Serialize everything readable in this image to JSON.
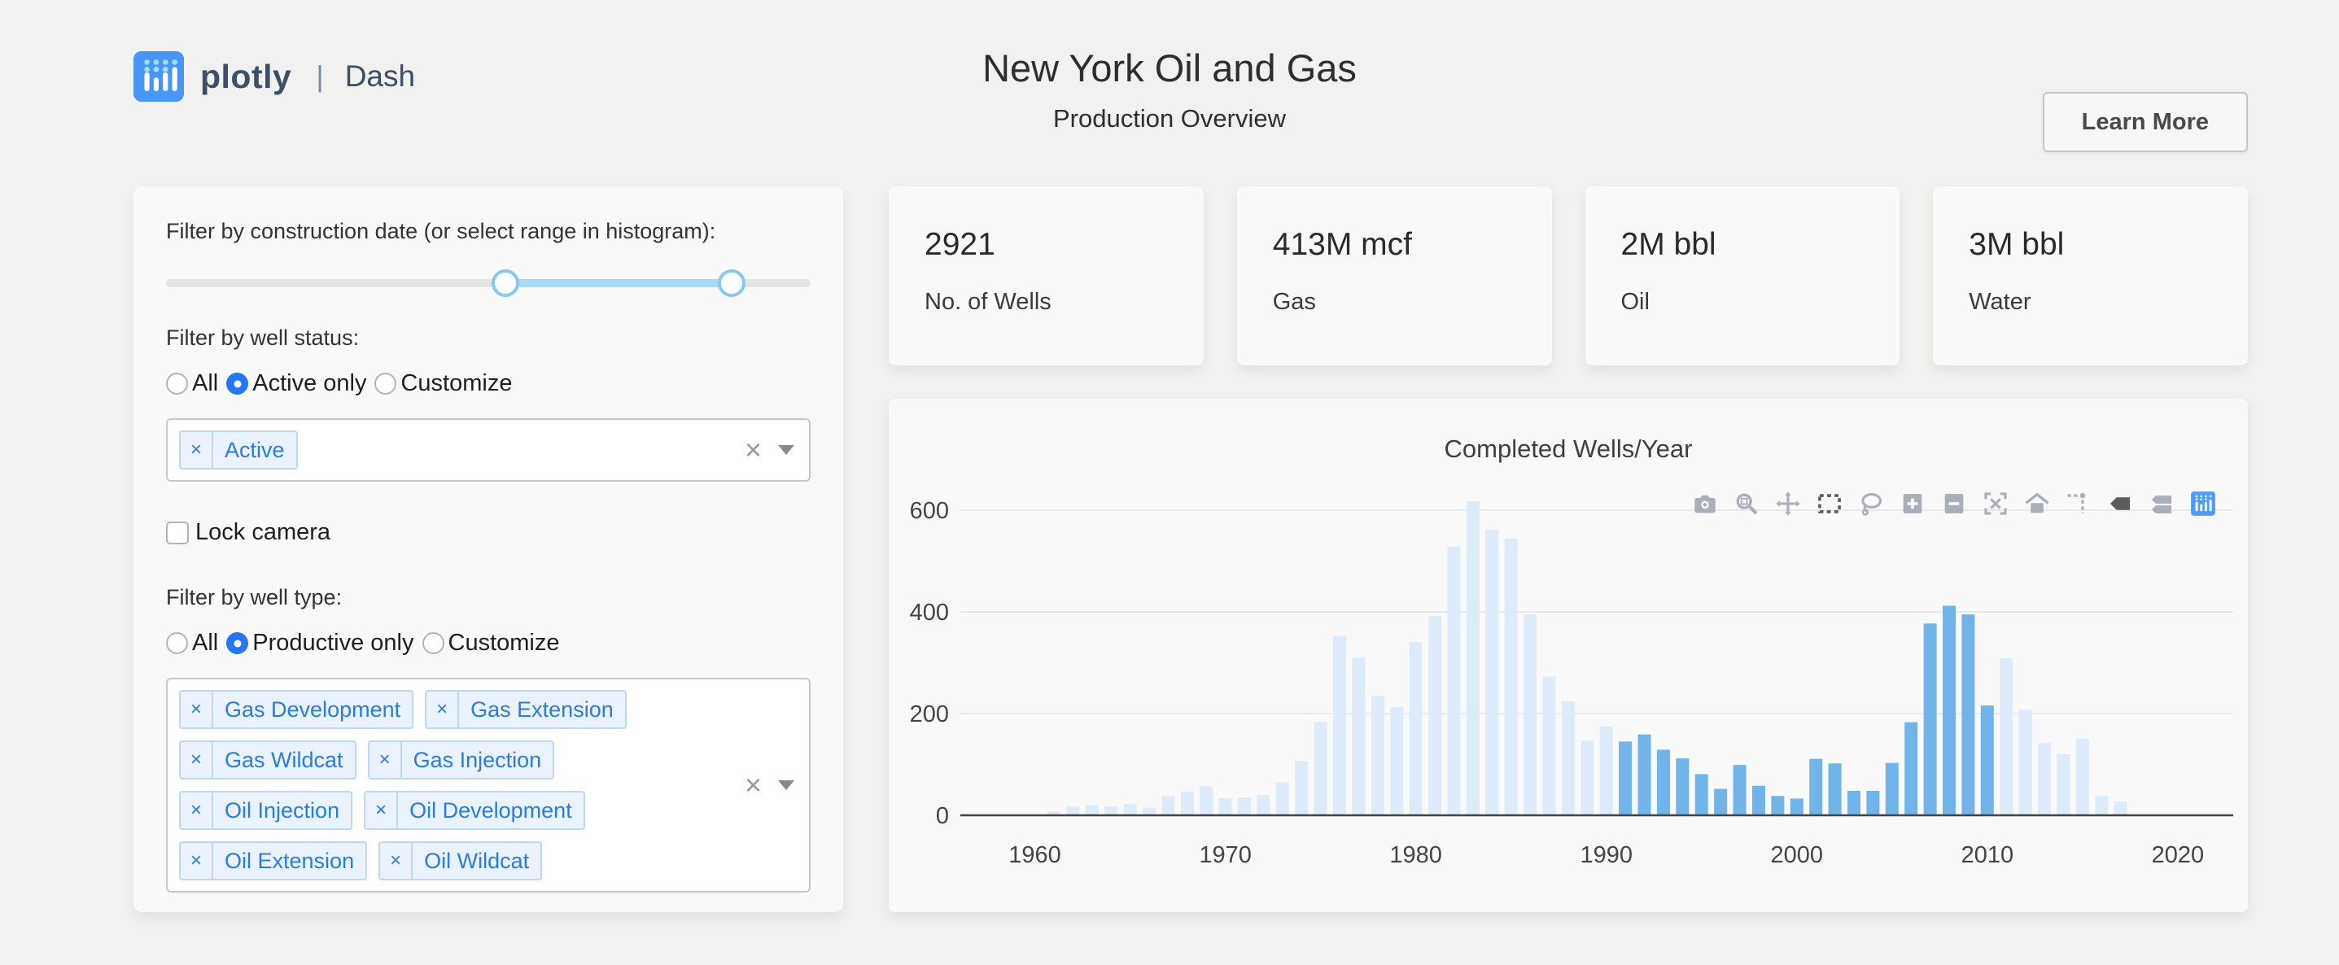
{
  "header": {
    "logo": {
      "brand": "plotly",
      "separator": "|",
      "product": "Dash"
    },
    "title": "New York Oil and Gas",
    "subtitle": "Production Overview",
    "learn_more_label": "Learn More"
  },
  "glyphs": {
    "chip_remove": "×",
    "dropdown_clear": "×",
    "dropdown_caret": "caret-down"
  },
  "filters": {
    "construction_date_label": "Filter by construction date (or select range in histogram):",
    "year_slider": {
      "min": 1960,
      "max": 2017,
      "value": [
        1990,
        2010
      ]
    },
    "well_status_label": "Filter by well status:",
    "well_status_options": [
      {
        "label": "All",
        "selected": false
      },
      {
        "label": "Active only",
        "selected": true
      },
      {
        "label": "Customize",
        "selected": false
      }
    ],
    "well_status_chips": [
      "Active"
    ],
    "lock_camera_label": "Lock camera",
    "lock_camera_checked": false,
    "well_type_label": "Filter by well type:",
    "well_type_options": [
      {
        "label": "All",
        "selected": false
      },
      {
        "label": "Productive only",
        "selected": true
      },
      {
        "label": "Customize",
        "selected": false
      }
    ],
    "well_type_chips": [
      "Gas Development",
      "Gas Extension",
      "Gas Wildcat",
      "Gas Injection",
      "Oil Injection",
      "Oil Development",
      "Oil Extension",
      "Oil Wildcat"
    ]
  },
  "stats": [
    {
      "value": "2921",
      "label": "No. of Wells"
    },
    {
      "value": "413M mcf",
      "label": "Gas"
    },
    {
      "value": "2M bbl",
      "label": "Oil"
    },
    {
      "value": "3M bbl",
      "label": "Water"
    }
  ],
  "modebar": {
    "icons": [
      "camera",
      "zoom",
      "pan",
      "box-select",
      "lasso",
      "zoom-in",
      "zoom-out",
      "autoscale",
      "reset-axes",
      "toggle-spikelines",
      "hover-closest",
      "hover-compare",
      "plotly-logo"
    ],
    "active": [
      "box-select",
      "hover-closest"
    ],
    "default_color": "#a5acb8",
    "active_color": "#555555",
    "logo_color": "#4796f5"
  },
  "chart_data": {
    "type": "bar",
    "title": "Completed Wells/Year",
    "xlabel": "",
    "ylabel": "",
    "x": [
      1961,
      1962,
      1963,
      1964,
      1965,
      1966,
      1967,
      1968,
      1969,
      1970,
      1971,
      1972,
      1973,
      1974,
      1975,
      1976,
      1977,
      1978,
      1979,
      1980,
      1981,
      1982,
      1983,
      1984,
      1985,
      1986,
      1987,
      1988,
      1989,
      1990,
      1991,
      1992,
      1993,
      1994,
      1995,
      1996,
      1997,
      1998,
      1999,
      2000,
      2001,
      2002,
      2003,
      2004,
      2005,
      2006,
      2007,
      2008,
      2009,
      2010,
      2011,
      2012,
      2013,
      2014,
      2015,
      2016,
      2017
    ],
    "values": [
      8,
      17,
      20,
      17,
      22,
      15,
      38,
      46,
      57,
      34,
      35,
      40,
      65,
      107,
      184,
      353,
      310,
      235,
      213,
      341,
      392,
      528,
      618,
      562,
      544,
      395,
      273,
      224,
      147,
      175,
      145,
      159,
      129,
      112,
      81,
      52,
      99,
      58,
      38,
      33,
      111,
      102,
      48,
      48,
      103,
      183,
      377,
      412,
      395,
      216,
      309,
      208,
      142,
      120,
      151,
      38,
      27
    ],
    "selected_range": [
      1991,
      2010
    ],
    "colors": {
      "selected": "#71b4e9",
      "unselected": "#dcebf9"
    },
    "xticks": [
      1960,
      1970,
      1980,
      1990,
      2000,
      2010,
      2020
    ],
    "yticks": [
      0,
      200,
      400,
      600
    ],
    "xlim": [
      1957.5,
      2021.5
    ],
    "ylim": [
      0,
      650
    ],
    "grid": true,
    "legend": "none"
  }
}
